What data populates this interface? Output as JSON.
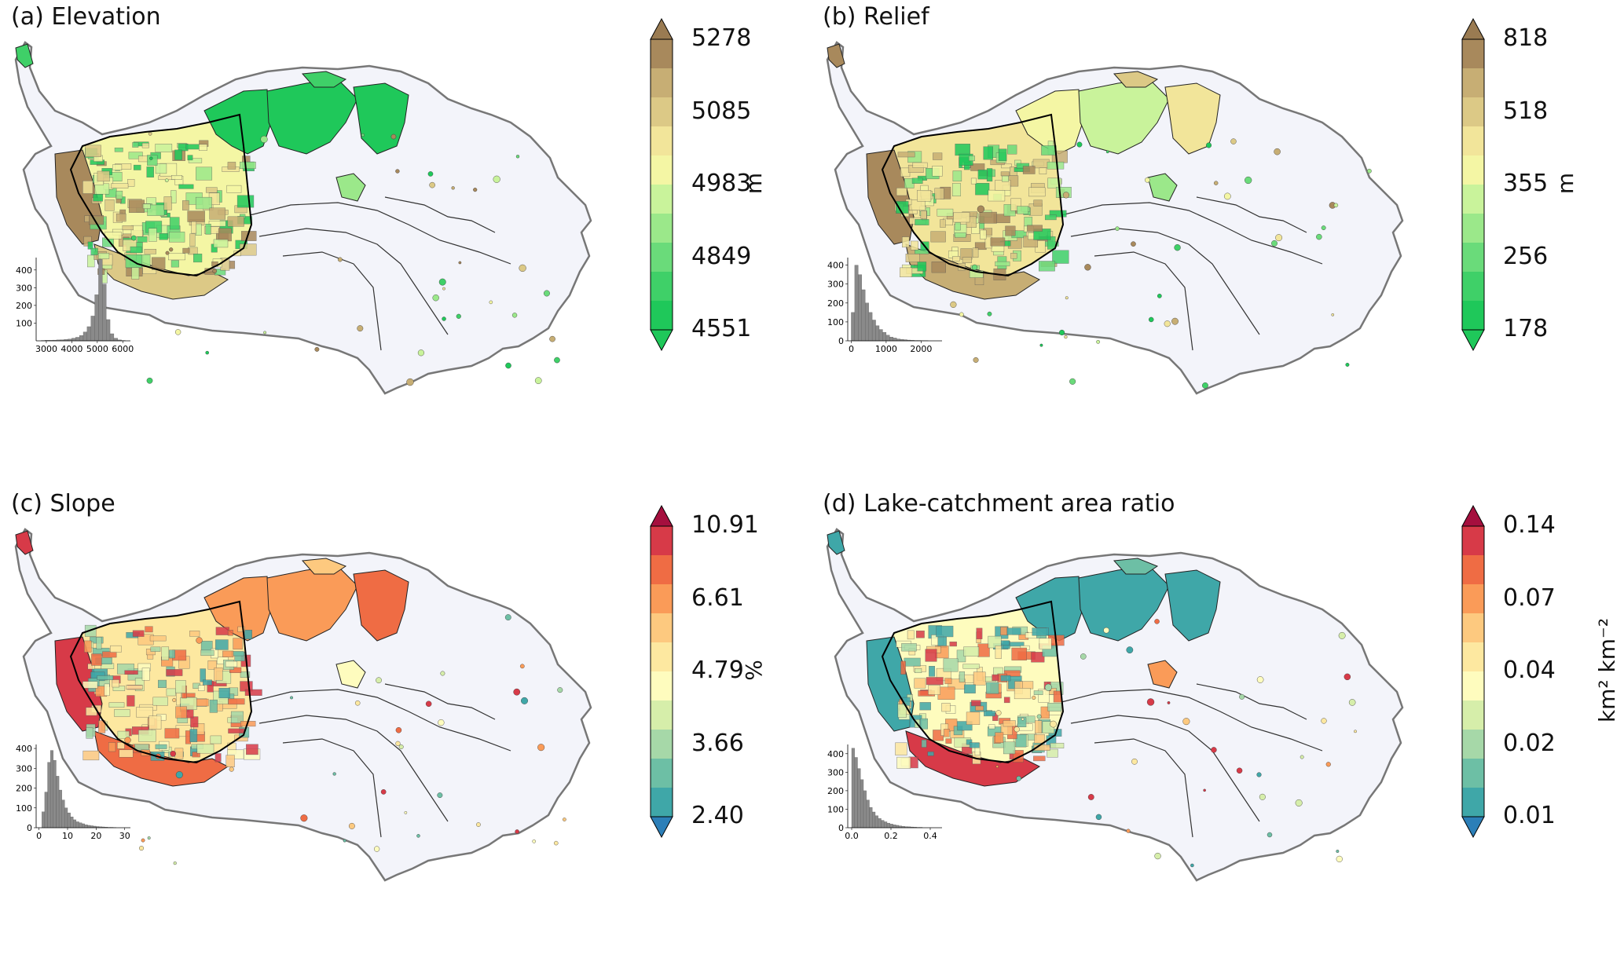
{
  "panels": [
    {
      "id": "a",
      "title": "(a) Elevation",
      "unit": "m",
      "ticks": [
        "5278",
        "5085",
        "4983",
        "4849",
        "4551"
      ],
      "palette": [
        "#1fc85a",
        "#3fd068",
        "#6adb7a",
        "#9be88a",
        "#c9f39b",
        "#f4f6a4",
        "#f2e59a",
        "#dcc986",
        "#c7ae74",
        "#a8895c"
      ],
      "low_arrow": "#1fc85a",
      "high_arrow": "#9a7b52",
      "chart_data": {
        "type": "bar",
        "categories": [
          "3000",
          "4000",
          "5000",
          "6000"
        ],
        "xticks": [
          "3000",
          "4000",
          "5000",
          "6000"
        ],
        "yticks": [
          "100",
          "200",
          "300",
          "400"
        ],
        "xlim": [
          2600,
          6300
        ],
        "ylim": [
          0,
          470
        ],
        "values_note_free": true,
        "bins": [
          2800,
          2950,
          3100,
          3250,
          3400,
          3550,
          3700,
          3850,
          4000,
          4150,
          4300,
          4450,
          4600,
          4750,
          4900,
          5050,
          5200,
          5350,
          5500,
          5650,
          5800,
          5950
        ],
        "counts": [
          2,
          3,
          3,
          4,
          5,
          6,
          8,
          10,
          15,
          20,
          30,
          50,
          80,
          140,
          260,
          460,
          320,
          120,
          40,
          15,
          5,
          2
        ]
      }
    },
    {
      "id": "b",
      "title": "(b) Relief",
      "unit": "m",
      "ticks": [
        "818",
        "518",
        "355",
        "256",
        "178"
      ],
      "palette": [
        "#1fc85a",
        "#3fd068",
        "#6adb7a",
        "#9be88a",
        "#c9f39b",
        "#f4f6a4",
        "#f2e59a",
        "#dcc986",
        "#c7ae74",
        "#a8895c"
      ],
      "low_arrow": "#1fc85a",
      "high_arrow": "#9a7b52",
      "chart_data": {
        "type": "bar",
        "xticks": [
          "0",
          "1000",
          "2000"
        ],
        "yticks": [
          "0",
          "100",
          "200",
          "300",
          "400"
        ],
        "xlim": [
          -100,
          2600
        ],
        "ylim": [
          0,
          440
        ],
        "bins": [
          0,
          100,
          200,
          300,
          400,
          500,
          600,
          700,
          800,
          900,
          1000,
          1100,
          1200,
          1300,
          1400,
          1500,
          1600,
          1700,
          1800,
          1900,
          2000,
          2100
        ],
        "counts": [
          150,
          400,
          350,
          270,
          200,
          150,
          110,
          80,
          60,
          45,
          30,
          20,
          15,
          10,
          8,
          6,
          4,
          3,
          2,
          2,
          1,
          1
        ]
      }
    },
    {
      "id": "c",
      "title": "(c) Slope",
      "unit": "%",
      "ticks": [
        "10.91",
        "6.61",
        "4.79",
        "3.66",
        "2.40"
      ],
      "palette": [
        "#3fa7a8",
        "#6dbfa5",
        "#a6d8a8",
        "#d6eeaa",
        "#fefcbe",
        "#fde8a0",
        "#fdc97f",
        "#fa9b58",
        "#ef6c44",
        "#d73a48"
      ],
      "low_arrow": "#2c7fb8",
      "high_arrow": "#a50f3e",
      "chart_data": {
        "type": "bar",
        "xticks": [
          "0",
          "10",
          "20",
          "30"
        ],
        "yticks": [
          "0",
          "100",
          "200",
          "300",
          "400"
        ],
        "xlim": [
          -1,
          32
        ],
        "ylim": [
          0,
          420
        ],
        "bins": [
          1,
          2,
          3,
          4,
          5,
          6,
          7,
          8,
          9,
          10,
          11,
          12,
          13,
          14,
          15,
          16,
          17,
          18,
          19,
          20,
          21,
          22,
          23,
          24,
          25,
          26
        ],
        "counts": [
          80,
          180,
          330,
          390,
          340,
          260,
          190,
          140,
          100,
          75,
          55,
          40,
          30,
          25,
          20,
          15,
          12,
          10,
          8,
          6,
          5,
          4,
          3,
          2,
          2,
          1
        ]
      }
    },
    {
      "id": "d",
      "title": "(d) Lake-catchment area ratio",
      "unit": "km² km⁻²",
      "ticks": [
        "0.14",
        "0.07",
        "0.04",
        "0.02",
        "0.01"
      ],
      "palette": [
        "#3fa7a8",
        "#6dbfa5",
        "#a6d8a8",
        "#d6eeaa",
        "#fefcbe",
        "#fde8a0",
        "#fdc97f",
        "#fa9b58",
        "#ef6c44",
        "#d73a48"
      ],
      "low_arrow": "#2c7fb8",
      "high_arrow": "#a50f3e",
      "chart_data": {
        "type": "bar",
        "xticks": [
          "0.0",
          "0.2",
          "0.4"
        ],
        "yticks": [
          "0",
          "100",
          "200",
          "300",
          "400"
        ],
        "xlim": [
          -0.02,
          0.46
        ],
        "ylim": [
          0,
          450
        ],
        "bins": [
          0.0,
          0.015,
          0.03,
          0.045,
          0.06,
          0.075,
          0.09,
          0.105,
          0.12,
          0.135,
          0.15,
          0.165,
          0.18,
          0.195,
          0.21,
          0.225,
          0.24,
          0.255,
          0.27,
          0.285,
          0.3,
          0.315,
          0.33,
          0.345
        ],
        "counts": [
          430,
          380,
          320,
          260,
          200,
          150,
          110,
          85,
          65,
          50,
          40,
          32,
          25,
          20,
          16,
          13,
          10,
          8,
          6,
          5,
          4,
          3,
          2,
          2
        ]
      }
    }
  ]
}
